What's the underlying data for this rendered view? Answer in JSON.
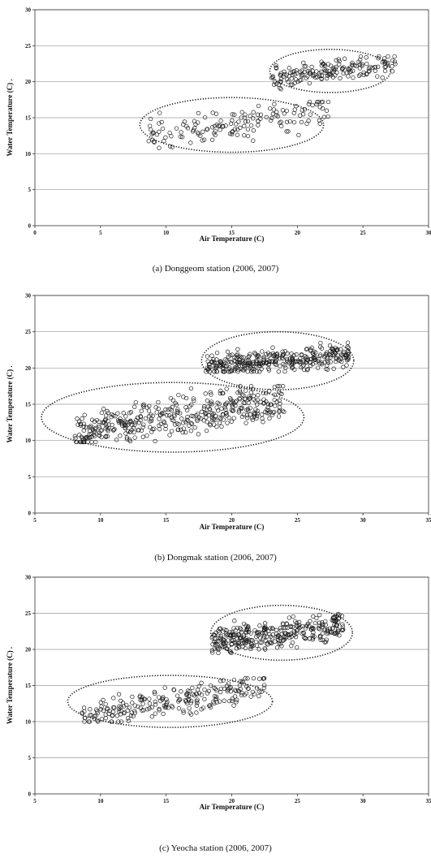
{
  "chart_data": [
    {
      "type": "scatter",
      "xlabel": "Air Temperature (C)",
      "ylabel": "Water Temperature (C)  .",
      "caption": "(a)  Donggeom  station  (2006,  2007)",
      "xlim": [
        0,
        30
      ],
      "ylim": [
        0,
        30
      ],
      "xticks": [
        0,
        5,
        10,
        15,
        20,
        25,
        30
      ],
      "yticks": [
        0,
        5,
        10,
        15,
        20,
        25,
        30
      ],
      "grid": "horizontal",
      "marker": "open-circle",
      "clusters": [
        {
          "cx": 15,
          "cy": 14,
          "rx": 7,
          "ry": 3.8,
          "n": 150,
          "seed": 11,
          "xrange": [
            8.5,
            22.5
          ],
          "yrange": [
            10.8,
            17.2
          ],
          "slope": 0.25
        },
        {
          "cx": 22.5,
          "cy": 21.5,
          "rx": 4.6,
          "ry": 3.0,
          "n": 170,
          "seed": 23,
          "xrange": [
            18,
            27.5
          ],
          "yrange": [
            18.8,
            23.5
          ],
          "slope": 0.2
        }
      ]
    },
    {
      "type": "scatter",
      "xlabel": "Air Temperature (C)",
      "ylabel": "Water Temperature (C)  .",
      "caption": "(b)  Dongmak  station  (2006,  2007)",
      "xlim": [
        5,
        35
      ],
      "ylim": [
        0,
        30
      ],
      "xticks": [
        5,
        10,
        15,
        20,
        25,
        30,
        35
      ],
      "yticks": [
        0,
        5,
        10,
        15,
        20,
        25,
        30
      ],
      "grid": "horizontal",
      "marker": "open-circle",
      "clusters": [
        {
          "cx": 15.5,
          "cy": 13.2,
          "rx": 10,
          "ry": 4.8,
          "n": 420,
          "seed": 37,
          "xrange": [
            8,
            24
          ],
          "yrange": [
            9.8,
            17.5
          ],
          "slope": 0.3
        },
        {
          "cx": 23.5,
          "cy": 21,
          "rx": 5.8,
          "ry": 4.0,
          "n": 340,
          "seed": 41,
          "xrange": [
            18,
            29
          ],
          "yrange": [
            19.5,
            24
          ],
          "slope": 0.15
        }
      ]
    },
    {
      "type": "scatter",
      "xlabel": "Air Temperature (C)",
      "ylabel": "Water Temperature (C)  .",
      "caption": "(c)  Yeocha  station  (2006,  2007)",
      "xlim": [
        5,
        35
      ],
      "ylim": [
        0,
        30
      ],
      "xticks": [
        5,
        10,
        15,
        20,
        25,
        30,
        35
      ],
      "yticks": [
        0,
        5,
        10,
        15,
        20,
        25,
        30
      ],
      "grid": "horizontal",
      "marker": "open-circle",
      "clusters": [
        {
          "cx": 15.3,
          "cy": 12.8,
          "rx": 7.8,
          "ry": 3.6,
          "n": 230,
          "seed": 53,
          "xrange": [
            8.5,
            22.5
          ],
          "yrange": [
            10,
            16
          ],
          "slope": 0.3
        },
        {
          "cx": 23.8,
          "cy": 22.3,
          "rx": 5.4,
          "ry": 3.8,
          "n": 330,
          "seed": 67,
          "xrange": [
            18.5,
            28.5
          ],
          "yrange": [
            19.5,
            25
          ],
          "slope": 0.22
        }
      ]
    }
  ]
}
